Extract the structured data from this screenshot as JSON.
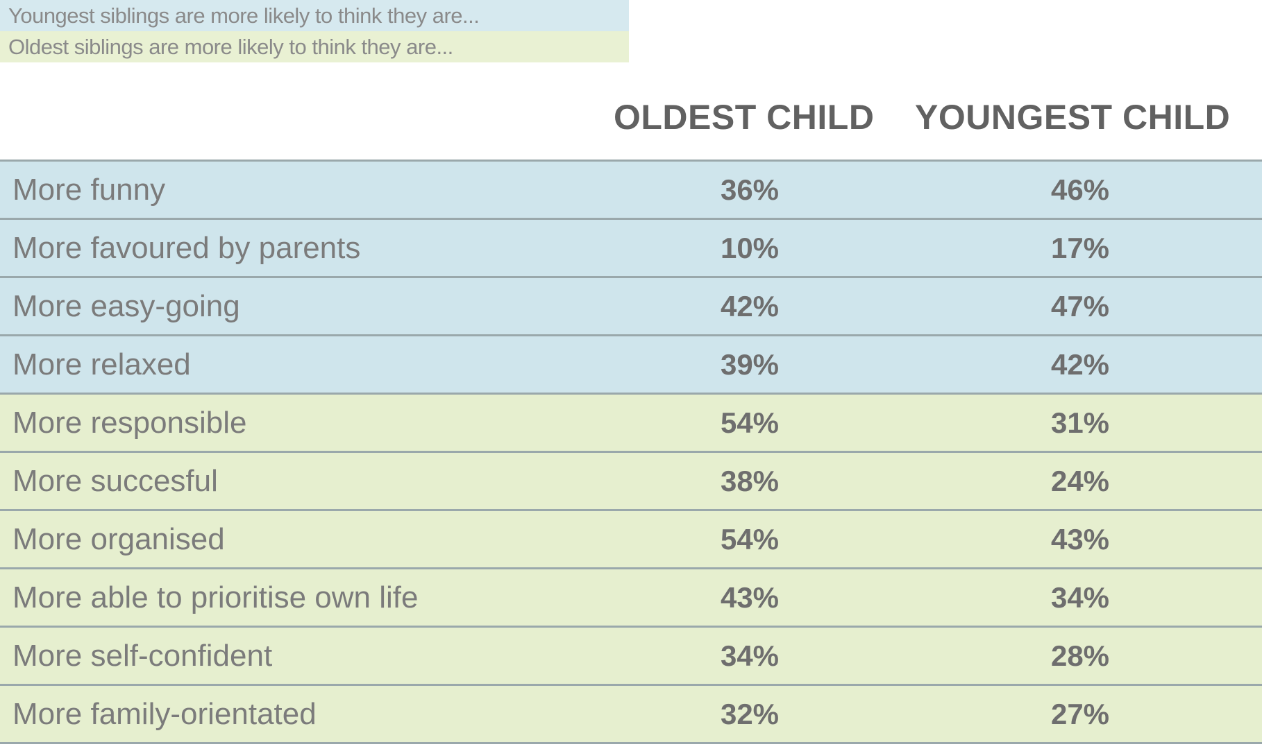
{
  "legend": [
    {
      "label": "Youngest siblings are more likely to think they are...",
      "color": "#d6e9ef"
    },
    {
      "label": "Oldest siblings are more likely to think they are...",
      "color": "#e9f1d3"
    }
  ],
  "columns": {
    "oldest": "OLDEST CHILD",
    "youngest": "YOUNGEST CHILD"
  },
  "colors": {
    "youngest_group": "#cfe5ec",
    "oldest_group": "#e6efcf",
    "grid": "#9aa8ab"
  },
  "chart_data": {
    "type": "table",
    "columns": [
      "OLDEST CHILD",
      "YOUNGEST CHILD"
    ],
    "rows": [
      {
        "label": "More funny",
        "oldest": "36%",
        "youngest": "46%",
        "group": "youngest"
      },
      {
        "label": "More favoured by parents",
        "oldest": "10%",
        "youngest": "17%",
        "group": "youngest"
      },
      {
        "label": "More easy-going",
        "oldest": "42%",
        "youngest": "47%",
        "group": "youngest"
      },
      {
        "label": "More relaxed",
        "oldest": "39%",
        "youngest": "42%",
        "group": "youngest"
      },
      {
        "label": "More responsible",
        "oldest": "54%",
        "youngest": "31%",
        "group": "oldest"
      },
      {
        "label": "More succesful",
        "oldest": "38%",
        "youngest": "24%",
        "group": "oldest"
      },
      {
        "label": "More organised",
        "oldest": "54%",
        "youngest": "43%",
        "group": "oldest"
      },
      {
        "label": "More able to prioritise own life",
        "oldest": "43%",
        "youngest": "34%",
        "group": "oldest"
      },
      {
        "label": "More self-confident",
        "oldest": "34%",
        "youngest": "28%",
        "group": "oldest"
      },
      {
        "label": "More family-orientated",
        "oldest": "32%",
        "youngest": "27%",
        "group": "oldest"
      }
    ]
  }
}
